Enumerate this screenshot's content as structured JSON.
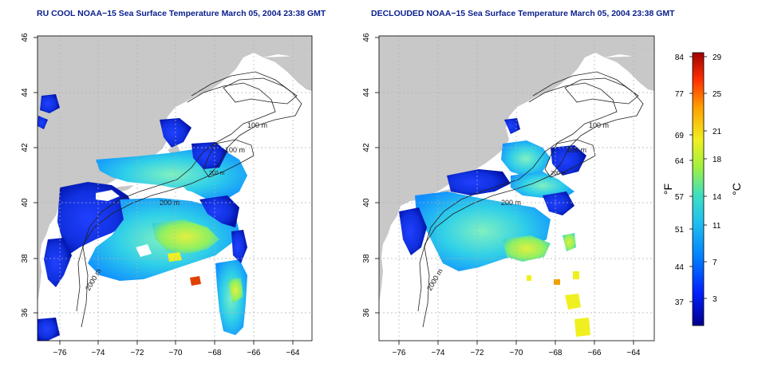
{
  "titles": {
    "left": "RU COOL NOAA−15 Sea Surface Temperature March 05, 2004 23:38 GMT",
    "right": "DECLOUDED NOAA−15 Sea Surface Temperature March 05, 2004 23:38 GMT"
  },
  "axes": {
    "lon_ticks": [
      "−76",
      "−74",
      "−72",
      "−70",
      "−68",
      "−66",
      "−64"
    ],
    "lat_ticks": [
      "36",
      "38",
      "40",
      "42",
      "44",
      "46"
    ]
  },
  "contour_labels": {
    "left": [
      "100 m",
      "100 m",
      "200 m",
      "200 m",
      "2000 m"
    ],
    "right": [
      "100 m",
      "100 m",
      "200 m",
      "200 m",
      "2000 m"
    ]
  },
  "colorbar": {
    "unit_f": "°F",
    "unit_c": "°C",
    "f_ticks": [
      "84",
      "77",
      "69",
      "64",
      "57",
      "51",
      "44",
      "37"
    ],
    "c_ticks": [
      "29",
      "25",
      "21",
      "18",
      "14",
      "11",
      "7",
      "3"
    ],
    "colors": [
      "#00008b",
      "#0020ff",
      "#0080ff",
      "#20d0e0",
      "#40e0c0",
      "#a0f040",
      "#f0f020",
      "#ffa000",
      "#ff3000",
      "#a00000"
    ]
  },
  "map_colors": {
    "land": "#c8c8c8",
    "ocean": "#ffffff",
    "grid": "#b0b0b0"
  }
}
